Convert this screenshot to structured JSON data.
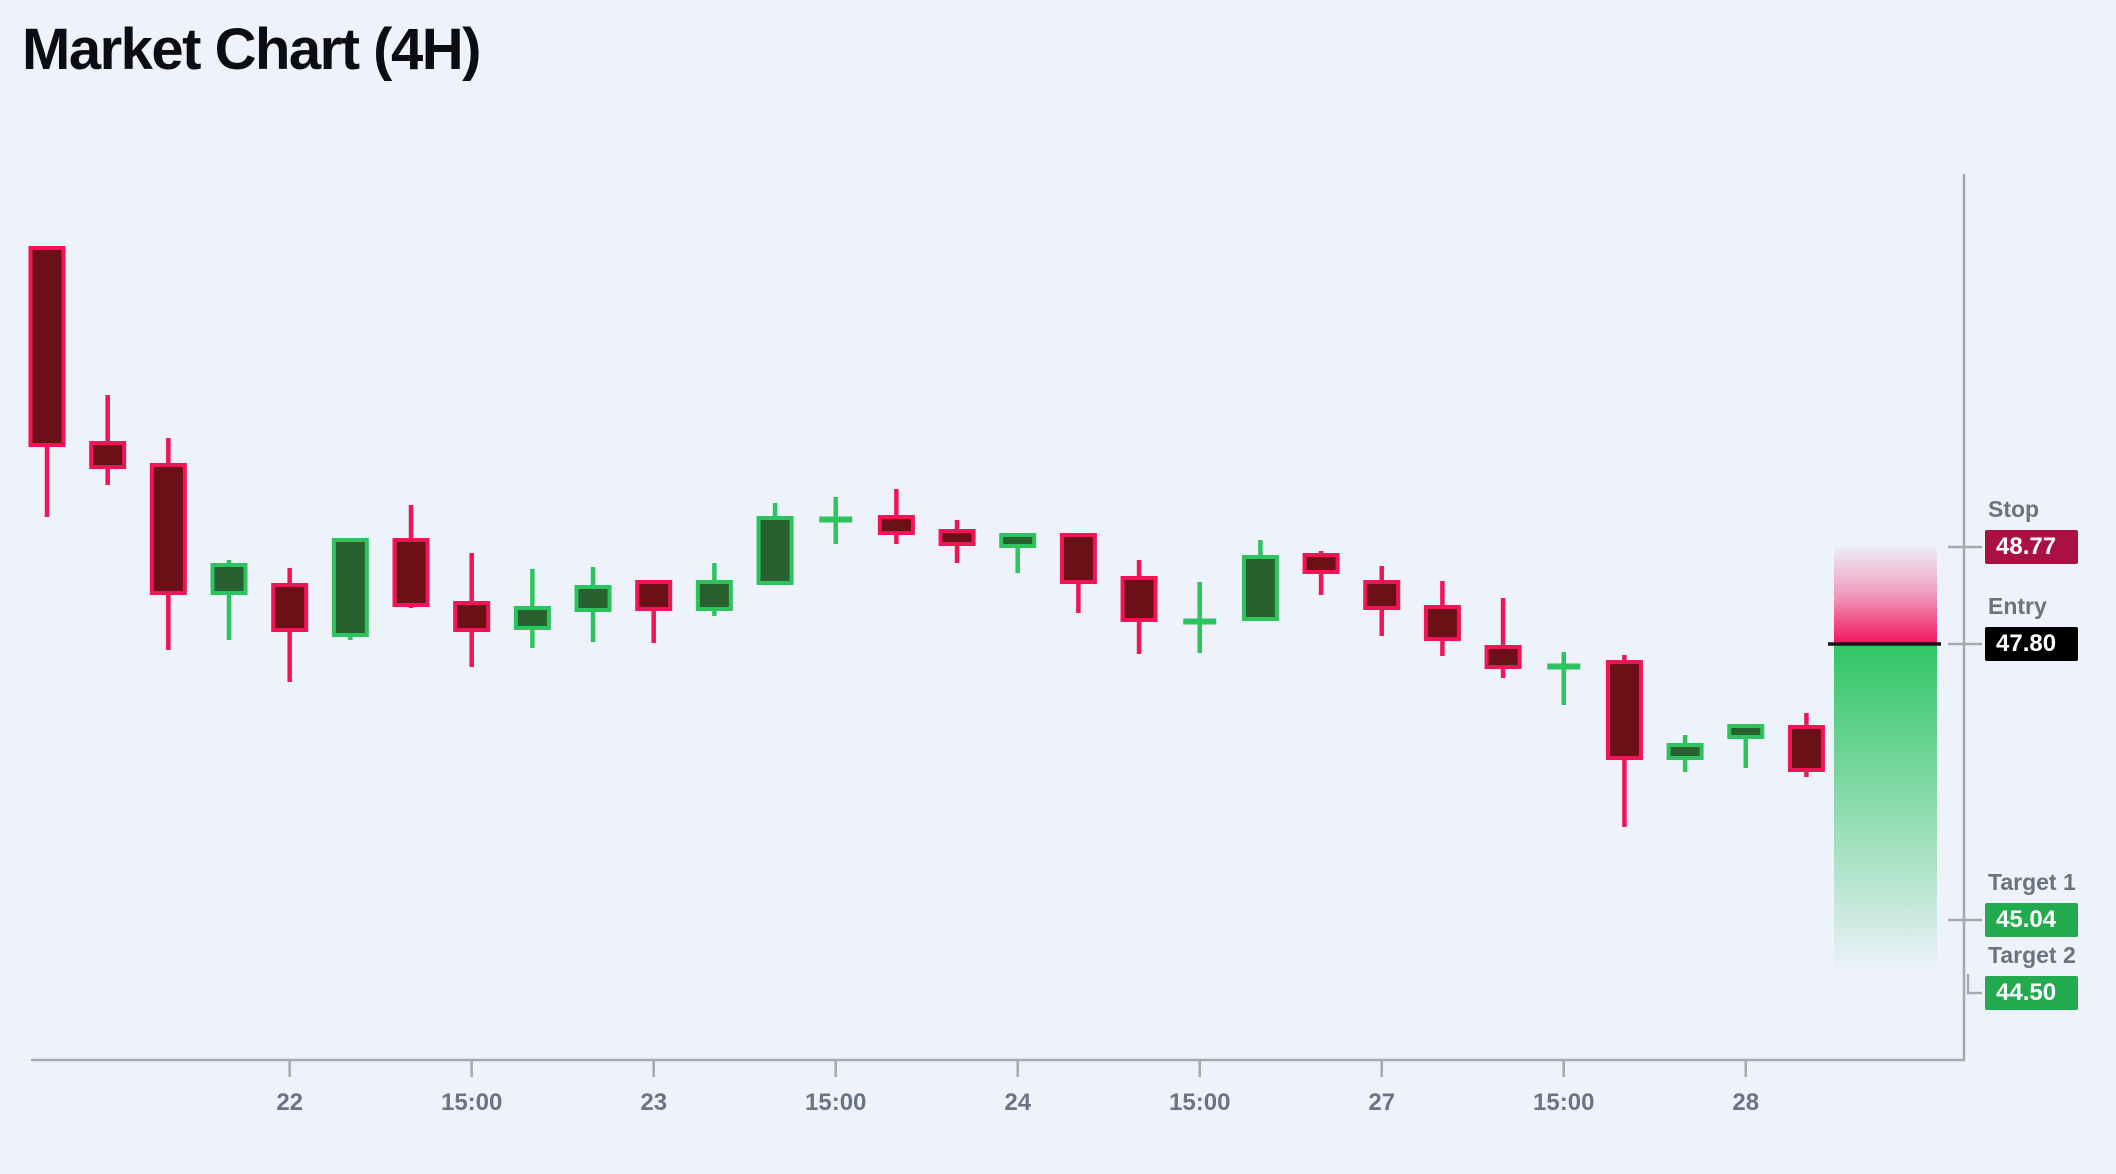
{
  "title": "Market Chart (4H)",
  "colors": {
    "background": "#eef2fa",
    "title": "#0c0c12",
    "axis": "#a3a9b5",
    "x_label": "#6d7386",
    "level_label": "#6b7280",
    "bull_stroke": "#2dc35f",
    "bull_fill": "#28612f",
    "bear_stroke": "#f31457",
    "bear_fill": "#6a1016",
    "entry_line": "#16161d",
    "risk_zone": "#f1145c",
    "reward_zone": "#2bc561",
    "badge_text": "#ffffff"
  },
  "levels": [
    {
      "id": "stop",
      "label": "Stop",
      "value": "48.77",
      "price": 48.77,
      "badge_color": "#ab1043"
    },
    {
      "id": "entry",
      "label": "Entry",
      "value": "47.80",
      "price": 47.8,
      "badge_color": "#000000"
    },
    {
      "id": "target1",
      "label": "Target 1",
      "value": "45.04",
      "price": 45.04,
      "badge_color": "#22ab4e"
    },
    {
      "id": "target2",
      "label": "Target 2",
      "value": "44.50",
      "price": 44.5,
      "badge_color": "#22ab4e"
    }
  ],
  "chart_data": {
    "type": "candlestick",
    "timeframe": "4H",
    "title": "Market Chart (4H)",
    "ylim": [
      44.2,
      52.2
    ],
    "grid": false,
    "legend": "none",
    "x_tick_labels": [
      {
        "candle_index": 4,
        "label": "22"
      },
      {
        "candle_index": 7,
        "label": "15:00"
      },
      {
        "candle_index": 10,
        "label": "23"
      },
      {
        "candle_index": 13,
        "label": "15:00"
      },
      {
        "candle_index": 16,
        "label": "24"
      },
      {
        "candle_index": 19,
        "label": "15:00"
      },
      {
        "candle_index": 22,
        "label": "27"
      },
      {
        "candle_index": 25,
        "label": "15:00"
      },
      {
        "candle_index": 28,
        "label": "28"
      }
    ],
    "candles": [
      {
        "o": 51.76,
        "h": 51.76,
        "l": 49.07,
        "c": 49.79
      },
      {
        "o": 49.81,
        "h": 50.29,
        "l": 49.39,
        "c": 49.57
      },
      {
        "o": 49.59,
        "h": 49.86,
        "l": 47.74,
        "c": 48.31
      },
      {
        "o": 48.31,
        "h": 48.64,
        "l": 47.84,
        "c": 48.59
      },
      {
        "o": 48.39,
        "h": 48.56,
        "l": 47.42,
        "c": 47.94
      },
      {
        "o": 47.89,
        "h": 48.86,
        "l": 47.84,
        "c": 48.84
      },
      {
        "o": 48.84,
        "h": 49.19,
        "l": 48.16,
        "c": 48.19
      },
      {
        "o": 48.21,
        "h": 48.71,
        "l": 47.57,
        "c": 47.94
      },
      {
        "o": 47.96,
        "h": 48.55,
        "l": 47.76,
        "c": 48.16
      },
      {
        "o": 48.14,
        "h": 48.57,
        "l": 47.82,
        "c": 48.37
      },
      {
        "o": 48.42,
        "h": 48.44,
        "l": 47.81,
        "c": 48.15
      },
      {
        "o": 48.15,
        "h": 48.61,
        "l": 48.08,
        "c": 48.42
      },
      {
        "o": 48.41,
        "h": 49.21,
        "l": 48.41,
        "c": 49.06
      },
      {
        "o": 49.04,
        "h": 49.27,
        "l": 48.8,
        "c": 49.05
      },
      {
        "o": 49.07,
        "h": 49.35,
        "l": 48.8,
        "c": 48.91
      },
      {
        "o": 48.93,
        "h": 49.04,
        "l": 48.61,
        "c": 48.8
      },
      {
        "o": 48.78,
        "h": 48.9,
        "l": 48.51,
        "c": 48.89
      },
      {
        "o": 48.89,
        "h": 48.91,
        "l": 48.11,
        "c": 48.42
      },
      {
        "o": 48.46,
        "h": 48.64,
        "l": 47.7,
        "c": 48.04
      },
      {
        "o": 48.02,
        "h": 48.42,
        "l": 47.71,
        "c": 48.03
      },
      {
        "o": 48.05,
        "h": 48.84,
        "l": 48.05,
        "c": 48.67
      },
      {
        "o": 48.69,
        "h": 48.73,
        "l": 48.29,
        "c": 48.52
      },
      {
        "o": 48.42,
        "h": 48.58,
        "l": 47.88,
        "c": 48.16
      },
      {
        "o": 48.17,
        "h": 48.43,
        "l": 47.68,
        "c": 47.85
      },
      {
        "o": 47.77,
        "h": 48.26,
        "l": 47.46,
        "c": 47.57
      },
      {
        "o": 47.57,
        "h": 47.72,
        "l": 47.19,
        "c": 47.58
      },
      {
        "o": 47.62,
        "h": 47.69,
        "l": 45.97,
        "c": 46.66
      },
      {
        "o": 46.66,
        "h": 46.89,
        "l": 46.52,
        "c": 46.79
      },
      {
        "o": 46.87,
        "h": 47.0,
        "l": 46.56,
        "c": 46.98
      },
      {
        "o": 46.97,
        "h": 47.11,
        "l": 46.47,
        "c": 46.54
      }
    ],
    "zones": {
      "risk": {
        "from_price": 47.8,
        "to_price": 48.77,
        "color": "#f1145c"
      },
      "reward": {
        "from_price": 44.5,
        "to_price": 47.8,
        "color": "#2bc561"
      }
    },
    "entry_price": 47.8
  }
}
